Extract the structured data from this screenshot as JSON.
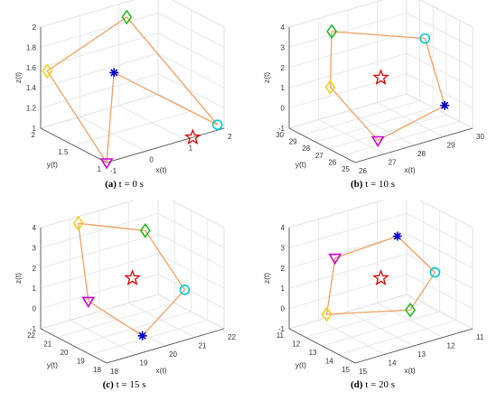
{
  "figure": {
    "panels": [
      {
        "id": "a",
        "label": "(a)",
        "caption": "t = 0 s",
        "zlabel": "z(t)",
        "ylabel": "y(t)",
        "xlabel": "x(t)",
        "z_ticks": [
          "2",
          "1.8",
          "1.6",
          "1.4",
          "1.2",
          "1"
        ],
        "y_ticks": [
          "2",
          "1.5",
          "1"
        ],
        "x_ticks": [
          "-1",
          "0",
          "1",
          "2"
        ]
      },
      {
        "id": "b",
        "label": "(b)",
        "caption": "t = 10 s",
        "zlabel": "z(t)",
        "ylabel": "y(t)",
        "xlabel": "x(t)",
        "z_ticks": [
          "4",
          "3",
          "2",
          "1",
          "0",
          "-1"
        ],
        "y_ticks": [
          "30",
          "29",
          "28",
          "27",
          "26",
          "25"
        ],
        "x_ticks": [
          "26",
          "27",
          "28",
          "29",
          "30"
        ]
      },
      {
        "id": "c",
        "label": "(c)",
        "caption": "t = 15 s",
        "zlabel": "z(t)",
        "ylabel": "y(t)",
        "xlabel": "x(t)",
        "z_ticks": [
          "4",
          "3",
          "2",
          "1",
          "0",
          "-1"
        ],
        "y_ticks": [
          "22",
          "21",
          "20",
          "19",
          "18"
        ],
        "x_ticks": [
          "18",
          "19",
          "20",
          "21",
          "22"
        ]
      },
      {
        "id": "d",
        "label": "(d)",
        "caption": "t = 20 s",
        "zlabel": "z(t)",
        "ylabel": "y(t)",
        "xlabel": "x(t)",
        "z_ticks": [
          "4",
          "3",
          "2",
          "1",
          "0",
          "-1"
        ],
        "y_ticks": [
          "11",
          "12",
          "13",
          "14",
          "15"
        ],
        "x_ticks": [
          "15",
          "14",
          "13",
          "12",
          "11"
        ]
      }
    ]
  },
  "chart_data": [
    {
      "type": "scatter",
      "title": "t = 0 s",
      "xlabel": "x(t)",
      "ylabel": "y(t)",
      "zlabel": "z(t)",
      "view": "3d",
      "xlim": [
        -1,
        2
      ],
      "ylim": [
        1,
        2
      ],
      "zlim": [
        1,
        2
      ],
      "grid": true,
      "polygon_order": [
        "magenta-triangle",
        "blue-asterisk",
        "cyan-circle",
        "green-diamond",
        "yellow-diamond",
        "magenta-triangle"
      ],
      "agents": [
        {
          "marker": "magenta-triangle",
          "color": "#cc00cc",
          "x": -1,
          "y": 1.0,
          "z": 1.0
        },
        {
          "marker": "blue-asterisk",
          "color": "#0000cc",
          "x": 0.2,
          "y": 1.6,
          "z": 1.55
        },
        {
          "marker": "cyan-circle",
          "color": "#00cccc",
          "x": 2,
          "y": 1.1,
          "z": 1.0
        },
        {
          "marker": "green-diamond",
          "color": "#22bb22",
          "x": 1.2,
          "y": 2.0,
          "z": 1.85
        },
        {
          "marker": "yellow-diamond",
          "color": "#f0d020",
          "x": -1,
          "y": 1.9,
          "z": 1.6
        }
      ],
      "target": {
        "marker": "red-star",
        "color": "#dd0000",
        "x": 1.2,
        "y": 1.0,
        "z": 1.0
      }
    },
    {
      "type": "scatter",
      "title": "t = 10 s",
      "xlabel": "x(t)",
      "ylabel": "y(t)",
      "zlabel": "z(t)",
      "view": "3d",
      "xlim": [
        26,
        30
      ],
      "ylim": [
        25,
        30
      ],
      "zlim": [
        -1,
        4
      ],
      "grid": true,
      "polygon_order": [
        "green-diamond",
        "cyan-circle",
        "blue-asterisk",
        "magenta-triangle",
        "yellow-diamond",
        "green-diamond"
      ],
      "agents": [
        {
          "marker": "green-diamond",
          "color": "#22bb22",
          "x": 27.0,
          "y": 29.0,
          "z": 3.7
        },
        {
          "marker": "cyan-circle",
          "color": "#00cccc",
          "x": 29.5,
          "y": 27.5,
          "z": 2.8
        },
        {
          "marker": "blue-asterisk",
          "color": "#0000cc",
          "x": 29.5,
          "y": 26.0,
          "z": 0.0
        },
        {
          "marker": "magenta-triangle",
          "color": "#cc00cc",
          "x": 27.0,
          "y": 25.5,
          "z": -0.5
        },
        {
          "marker": "yellow-diamond",
          "color": "#f0d020",
          "x": 26.5,
          "y": 28.0,
          "z": 1.5
        }
      ],
      "target": {
        "marker": "red-star",
        "color": "#dd0000",
        "x": 28.0,
        "y": 27.5,
        "z": 1.5
      }
    },
    {
      "type": "scatter",
      "title": "t = 15 s",
      "xlabel": "x(t)",
      "ylabel": "y(t)",
      "zlabel": "z(t)",
      "view": "3d",
      "xlim": [
        18,
        22
      ],
      "ylim": [
        18,
        22
      ],
      "zlim": [
        -1,
        4
      ],
      "grid": true,
      "polygon_order": [
        "yellow-diamond",
        "green-diamond",
        "cyan-circle",
        "blue-asterisk",
        "magenta-triangle",
        "yellow-diamond"
      ],
      "agents": [
        {
          "marker": "yellow-diamond",
          "color": "#f0d020",
          "x": 19.0,
          "y": 21.5,
          "z": 4.0
        },
        {
          "marker": "green-diamond",
          "color": "#22bb22",
          "x": 21.0,
          "y": 21.0,
          "z": 3.0
        },
        {
          "marker": "cyan-circle",
          "color": "#00cccc",
          "x": 21.5,
          "y": 19.5,
          "z": 0.5
        },
        {
          "marker": "blue-asterisk",
          "color": "#0000cc",
          "x": 19.5,
          "y": 18.5,
          "z": -0.5
        },
        {
          "marker": "magenta-triangle",
          "color": "#cc00cc",
          "x": 18.5,
          "y": 20.0,
          "z": 1.0
        }
      ],
      "target": {
        "marker": "red-star",
        "color": "#dd0000",
        "x": 20.0,
        "y": 20.0,
        "z": 1.5
      }
    },
    {
      "type": "scatter",
      "title": "t = 20 s",
      "xlabel": "x(t)",
      "ylabel": "y(t)",
      "zlabel": "z(t)",
      "view": "3d",
      "xlim": [
        11,
        15
      ],
      "ylim": [
        11,
        15
      ],
      "zlim": [
        -1,
        4
      ],
      "grid": true,
      "polygon_order": [
        "blue-asterisk",
        "magenta-triangle",
        "yellow-diamond",
        "green-diamond",
        "cyan-circle",
        "blue-asterisk"
      ],
      "agents": [
        {
          "marker": "blue-asterisk",
          "color": "#0000cc",
          "x": 13.0,
          "y": 12.0,
          "z": 4.0
        },
        {
          "marker": "magenta-triangle",
          "color": "#cc00cc",
          "x": 12.0,
          "y": 14.0,
          "z": 2.5
        },
        {
          "marker": "yellow-diamond",
          "color": "#f0d020",
          "x": 12.0,
          "y": 14.5,
          "z": -0.5
        },
        {
          "marker": "green-diamond",
          "color": "#22bb22",
          "x": 14.0,
          "y": 13.0,
          "z": -0.5
        },
        {
          "marker": "cyan-circle",
          "color": "#00cccc",
          "x": 14.0,
          "y": 11.5,
          "z": 2.0
        }
      ],
      "target": {
        "marker": "red-star",
        "color": "#dd0000",
        "x": 13.0,
        "y": 13.0,
        "z": 1.5
      }
    }
  ],
  "colors": {
    "edge": "#f0a060",
    "grid": "#e2e2e2",
    "axis": "#555555"
  }
}
